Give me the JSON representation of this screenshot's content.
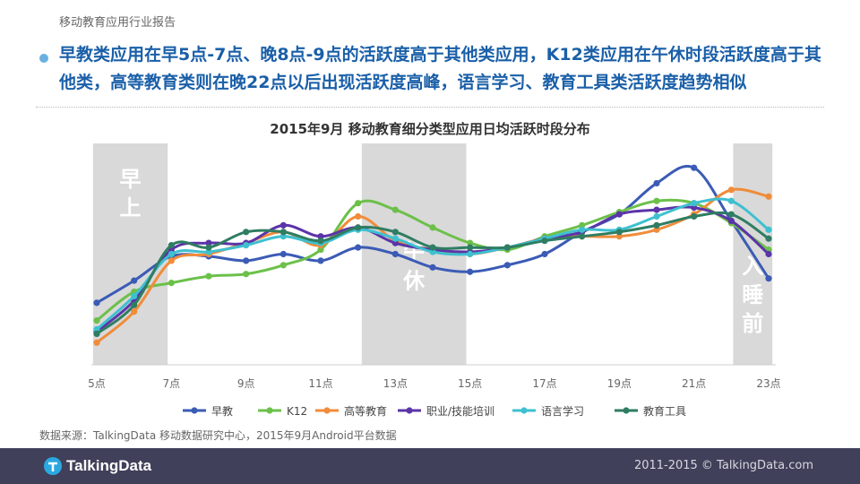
{
  "report_label": "移动教育应用行业报告",
  "headline": "早教类应用在早5点-7点、晚8点-9点的活跃度高于其他类应用，K12类应用在午休时段活跃度高于其他类，高等教育类则在晚22点以后出现活跃度高峰，语言学习、教育工具类活跃度趋势相似",
  "source_note": "数据来源：TalkingData  移动数据研究中心，2015年9月Android平台数据",
  "footer": {
    "logo": "TalkingData",
    "copyright": "2011-2015 © TalkingData.com"
  },
  "colors": {
    "headline": "#1a5fa8",
    "footer_bg": "#40405a",
    "band": "#d9d9d9"
  },
  "chart_data": {
    "type": "line",
    "title": "2015年9月 移动教育细分类型应用日均活跃时段分布",
    "x": [
      5,
      6,
      7,
      8,
      9,
      10,
      11,
      12,
      13,
      14,
      15,
      16,
      17,
      18,
      19,
      20,
      21,
      22,
      23
    ],
    "x_tick_labels": [
      "5点",
      "7点",
      "9点",
      "11点",
      "13点",
      "15点",
      "17点",
      "19点",
      "21点",
      "23点"
    ],
    "x_tick_values": [
      5,
      7,
      9,
      11,
      13,
      15,
      17,
      19,
      21,
      23
    ],
    "ylim": [
      0,
      100
    ],
    "legend": "bottom",
    "bands": [
      {
        "label": "早上",
        "from": 4.9,
        "to": 6.9,
        "label_pos": "top"
      },
      {
        "label": "午休",
        "from": 12.1,
        "to": 14.9,
        "label_pos": "middle"
      },
      {
        "label": "入睡前",
        "from": 22.05,
        "to": 23.1,
        "label_pos": "bottom"
      }
    ],
    "series": [
      {
        "name": "早教",
        "color": "#3b5bb5",
        "values": [
          28,
          38,
          49,
          49,
          47,
          50,
          47,
          53,
          50,
          44,
          42,
          45,
          50,
          60,
          68,
          82,
          89,
          65,
          39
        ]
      },
      {
        "name": "K12",
        "color": "#6cc04a",
        "values": [
          20,
          33,
          37,
          40,
          41,
          45,
          52,
          73,
          70,
          62,
          55,
          52,
          58,
          63,
          69,
          74,
          73,
          64,
          52
        ]
      },
      {
        "name": "高等教育",
        "color": "#f08c3a",
        "values": [
          10,
          24,
          47,
          50,
          55,
          60,
          54,
          67,
          56,
          52,
          50,
          53,
          57,
          58,
          58,
          61,
          68,
          79,
          76
        ]
      },
      {
        "name": "职业/技能培训",
        "color": "#5b34a8",
        "values": [
          15,
          29,
          52,
          55,
          55,
          63,
          58,
          62,
          55,
          52,
          51,
          53,
          57,
          60,
          68,
          70,
          71,
          65,
          50
        ]
      },
      {
        "name": "语言学习",
        "color": "#3ec0d0",
        "values": [
          16,
          31,
          50,
          51,
          54,
          58,
          55,
          61,
          57,
          51,
          50,
          53,
          57,
          61,
          61,
          67,
          73,
          74,
          61
        ]
      },
      {
        "name": "教育工具",
        "color": "#2f7d62",
        "values": [
          14,
          27,
          54,
          53,
          60,
          60,
          56,
          62,
          60,
          53,
          53,
          53,
          56,
          58,
          60,
          63,
          67,
          68,
          57
        ]
      }
    ]
  }
}
